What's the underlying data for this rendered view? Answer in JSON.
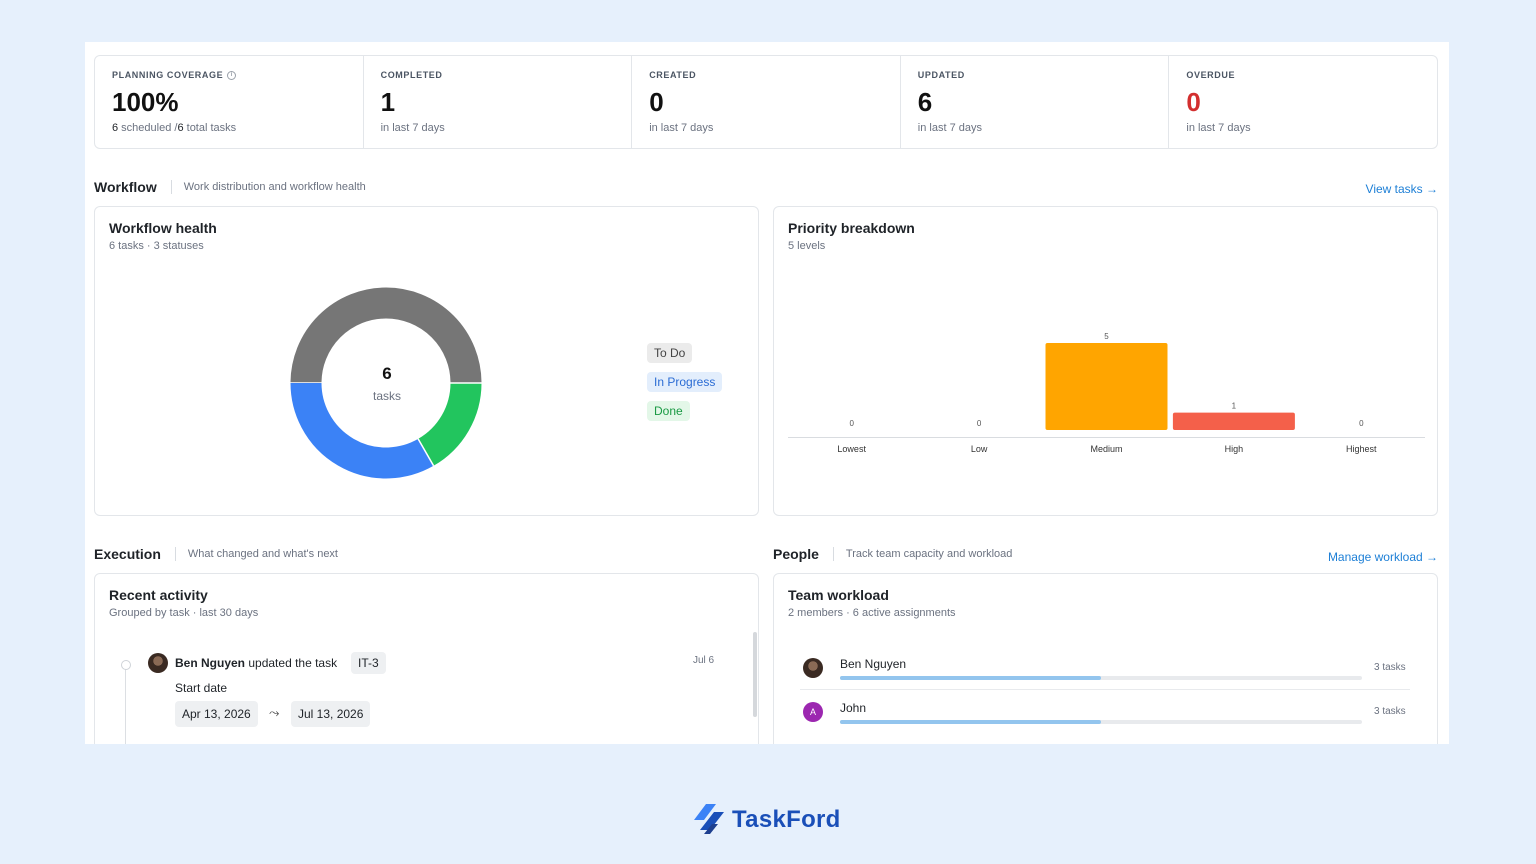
{
  "stats": [
    {
      "label": "PLANNING COVERAGE",
      "value": "100%",
      "sub_bold": "6",
      "sub_mid": " scheduled /",
      "sub_bold2": "6",
      "sub_end": " total tasks"
    },
    {
      "label": "COMPLETED",
      "value": "1",
      "sub": "in last 7 days"
    },
    {
      "label": "CREATED",
      "value": "0",
      "sub": "in last 7 days"
    },
    {
      "label": "UPDATED",
      "value": "6",
      "sub": "in last 7 days"
    },
    {
      "label": "OVERDUE",
      "value": "0",
      "sub": "in last 7 days"
    }
  ],
  "workflow_section": {
    "title": "Workflow",
    "desc": "Work distribution and workflow health",
    "link": "View tasks →"
  },
  "workflow_health": {
    "title": "Workflow health",
    "sub": "6 tasks · 3 statuses",
    "center_value": "6",
    "center_label": "tasks",
    "legend": [
      {
        "label": "To Do",
        "color": "#767676",
        "fraction": 0.5
      },
      {
        "label": "In Progress",
        "color": "#3b82f6",
        "fraction": 0.333
      },
      {
        "label": "Done",
        "color": "#22c55e",
        "fraction": 0.167
      }
    ]
  },
  "priority": {
    "title": "Priority breakdown",
    "sub": "5 levels"
  },
  "chart_data": {
    "type": "bar",
    "categories": [
      "Lowest",
      "Low",
      "Medium",
      "High",
      "Highest"
    ],
    "values": [
      0,
      0,
      5,
      1,
      0
    ],
    "colors": [
      "#f59e0b",
      "#f59e0b",
      "#ffa500",
      "#f4604a",
      "#f4604a"
    ],
    "ylim": [
      0,
      5
    ]
  },
  "execution_section": {
    "title": "Execution",
    "desc": "What changed and what's next"
  },
  "recent_activity": {
    "title": "Recent activity",
    "sub": "Grouped by task · last 30 days",
    "item": {
      "user": "Ben Nguyen",
      "action": "updated the task",
      "task": "IT-3",
      "date": "Jul 6",
      "field": "Start date",
      "from": "Apr 13, 2026",
      "to": "Jul 13, 2026"
    }
  },
  "people_section": {
    "title": "People",
    "desc": "Track team capacity and workload",
    "link": "Manage workload →"
  },
  "team_workload": {
    "title": "Team workload",
    "sub": "2 members · 6 active assignments",
    "members": [
      {
        "name": "Ben Nguyen",
        "count": "3 tasks",
        "fraction": 0.5,
        "initial": ""
      },
      {
        "name": "John",
        "count": "3 tasks",
        "fraction": 0.5,
        "initial": "A"
      }
    ]
  },
  "brand": {
    "name": "TaskFord"
  }
}
